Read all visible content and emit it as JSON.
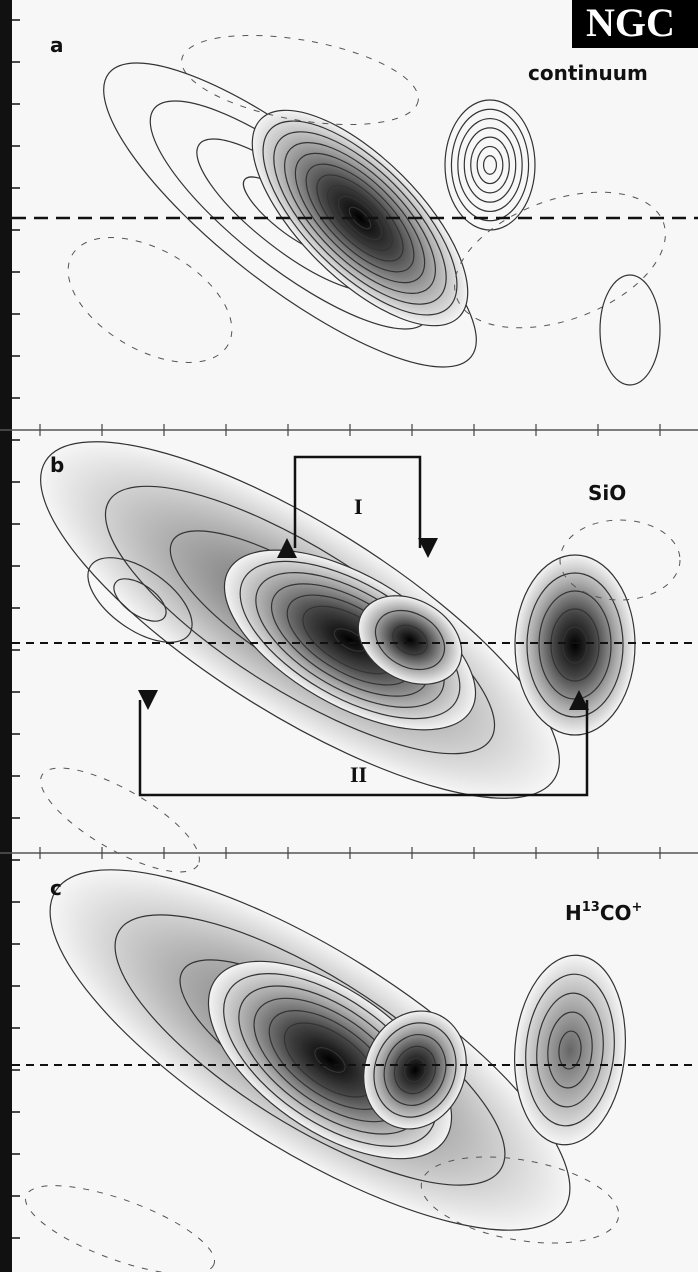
{
  "header": {
    "title": "NGC"
  },
  "panels": [
    {
      "label": "a",
      "line": "continuum"
    },
    {
      "label": "b",
      "line": "SiO",
      "bracket_upper": "I",
      "bracket_lower": "II"
    },
    {
      "label": "c",
      "line": {
        "base": "H",
        "isotope": "13",
        "molecule": "CO",
        "charge": "+"
      }
    }
  ]
}
